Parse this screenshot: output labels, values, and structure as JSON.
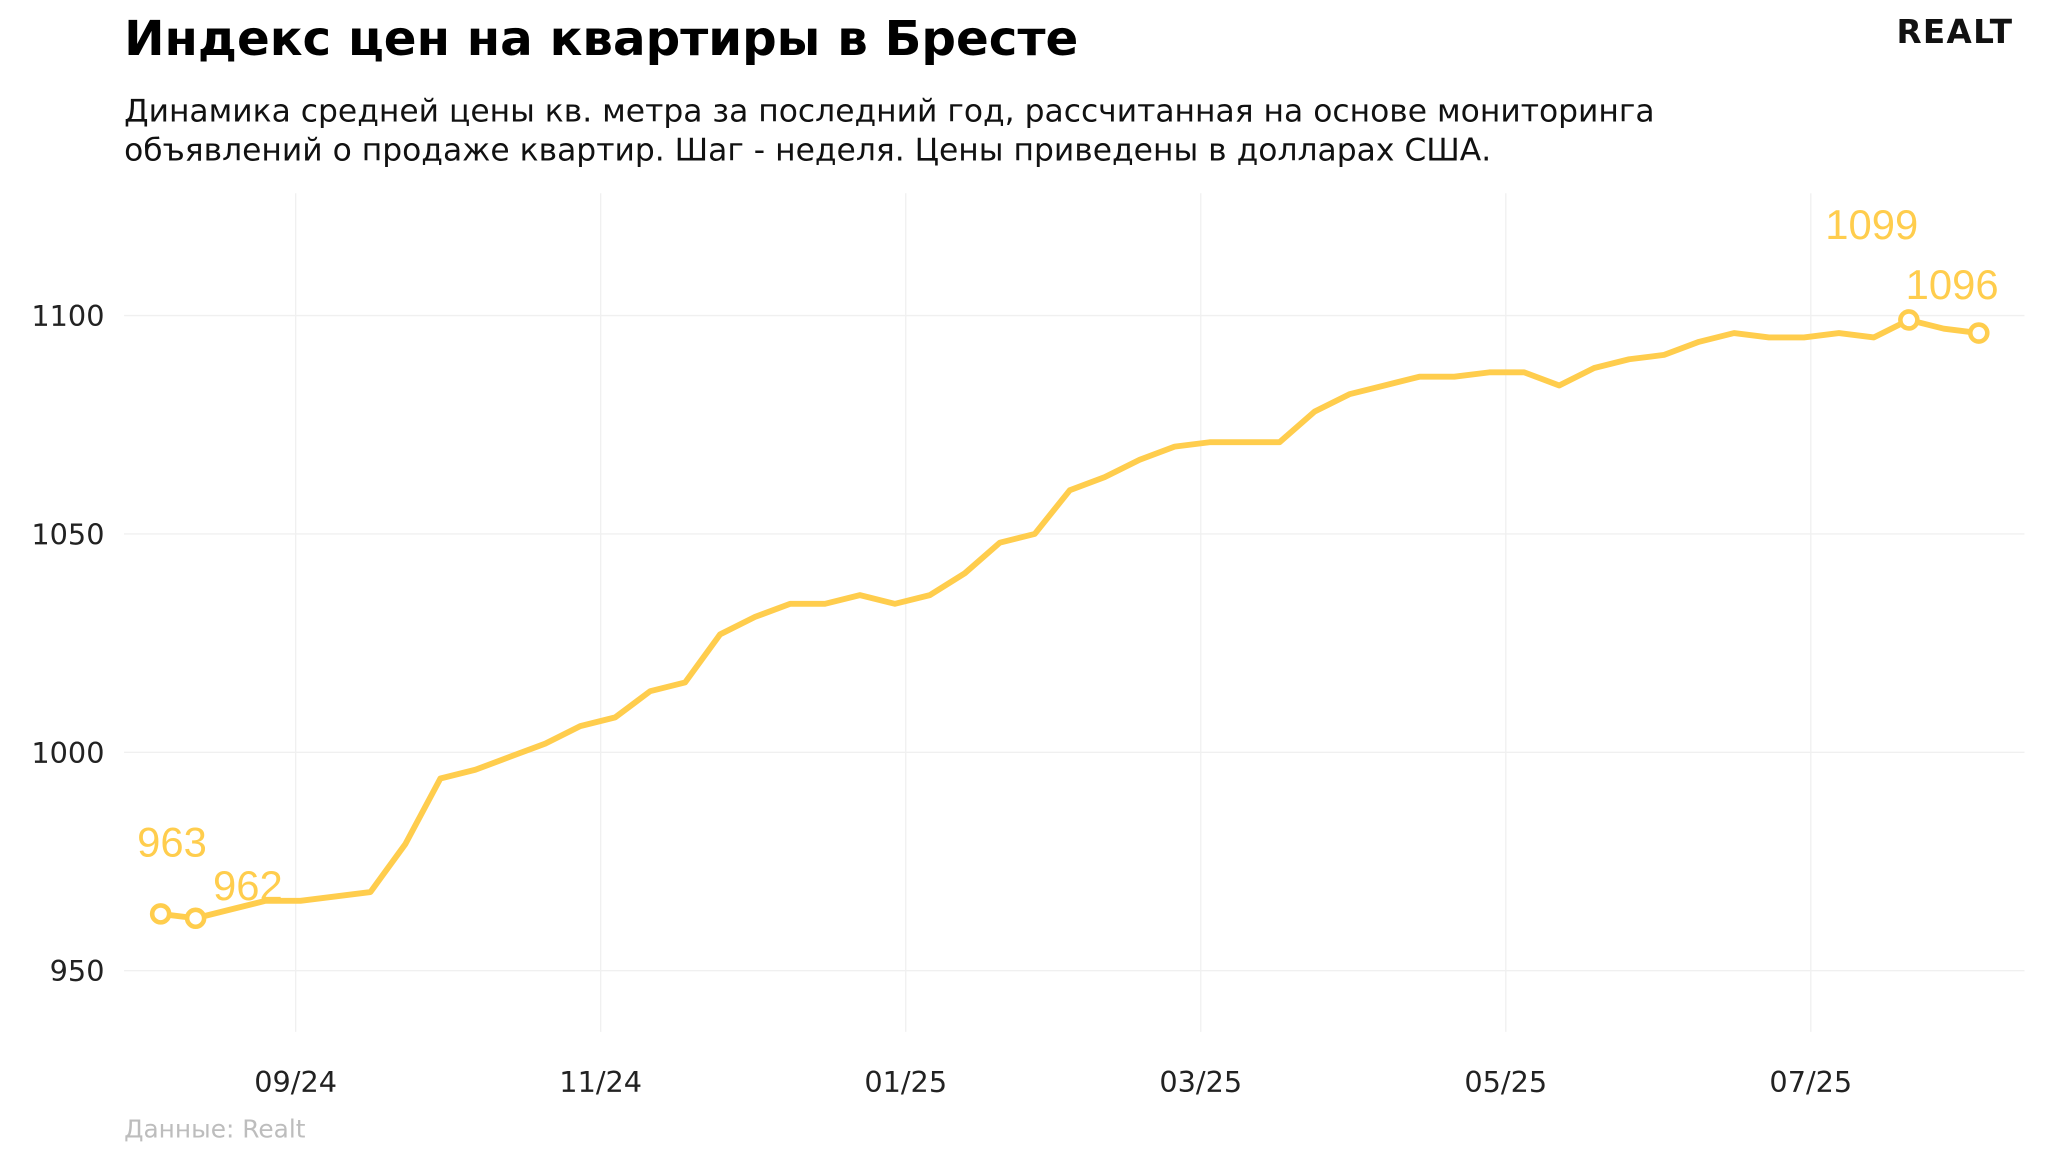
{
  "header": {
    "title": "Индекс цен на квартиры в Бресте",
    "subtitle": "Динамика средней цены кв. метра за последний год, рассчитанная на основе мониторинга объявлений о продаже квартир. Шаг - неделя. Цены приведены в долларах США.",
    "logo": "REALT"
  },
  "footer": {
    "source": "Данные: Realt"
  },
  "colors": {
    "line": "#ffcd4d",
    "grid": "#f0f0f0",
    "text": "#111111",
    "source": "#bdbdbd"
  },
  "chart_data": {
    "type": "line",
    "title": "Индекс цен на квартиры в Бресте",
    "xlabel": "",
    "ylabel": "",
    "ylim": [
      936,
      1128
    ],
    "grid": true,
    "x_ticks": [
      {
        "date": "2024-09-01",
        "label": "09/24"
      },
      {
        "date": "2024-11-01",
        "label": "11/24"
      },
      {
        "date": "2025-01-01",
        "label": "01/25"
      },
      {
        "date": "2025-03-01",
        "label": "03/25"
      },
      {
        "date": "2025-05-01",
        "label": "05/25"
      },
      {
        "date": "2025-07-01",
        "label": "07/25"
      }
    ],
    "y_ticks": [
      950,
      1000,
      1050,
      1100
    ],
    "x_start": "2024-08-05",
    "x_step": "week",
    "values": [
      963,
      962,
      964,
      966,
      966,
      967,
      968,
      979,
      994,
      996,
      999,
      1002,
      1006,
      1008,
      1014,
      1016,
      1027,
      1031,
      1034,
      1034,
      1036,
      1034,
      1036,
      1041,
      1048,
      1050,
      1060,
      1063,
      1067,
      1070,
      1071,
      1071,
      1071,
      1078,
      1082,
      1084,
      1086,
      1086,
      1087,
      1087,
      1084,
      1088,
      1090,
      1091,
      1094,
      1096,
      1095,
      1095,
      1096,
      1095,
      1099,
      1097,
      1096
    ],
    "annotations": [
      {
        "index": 0,
        "label": "963"
      },
      {
        "index": 1,
        "label": "962"
      },
      {
        "index": 50,
        "label": "1099"
      },
      {
        "index": 52,
        "label": "1096"
      }
    ]
  }
}
